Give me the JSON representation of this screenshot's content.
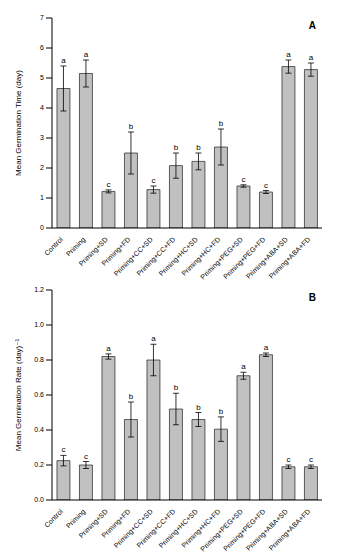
{
  "chart_data": [
    {
      "type": "bar",
      "title": "A",
      "y_label": "Mean Germination Time (day)",
      "categories": [
        "Control",
        "Priming",
        "Priming+SD",
        "Priming+FD",
        "Priming+CC+SD",
        "Priming+CC+FD",
        "Priming+HC+SD",
        "Priming+HC+FD",
        "Priming+PEG+SD",
        "Priming+PEG+FD",
        "Priming+ABA+SD",
        "Priming+ABA+FD"
      ],
      "values": [
        4.65,
        5.15,
        1.22,
        2.5,
        1.28,
        2.08,
        2.22,
        2.7,
        1.4,
        1.2,
        5.38,
        5.28
      ],
      "errors": [
        0.75,
        0.45,
        0.05,
        0.7,
        0.12,
        0.42,
        0.28,
        0.6,
        0.04,
        0.05,
        0.22,
        0.22
      ],
      "letters": [
        "a",
        "a",
        "c",
        "b",
        "c",
        "b",
        "b",
        "b",
        "c",
        "c",
        "a",
        "a"
      ],
      "color": "#c0c0c0",
      "ylim": [
        0,
        7
      ],
      "yticks": [
        0,
        1,
        2,
        3,
        4,
        5,
        6,
        7
      ],
      "grid": false
    },
    {
      "type": "bar",
      "title": "B",
      "y_label": "Mean Germination Rate (day)⁻¹",
      "categories": [
        "Control",
        "Priming",
        "Priming+SD",
        "Priming+FD",
        "Priming+CC+SD",
        "Priming+CC+FD",
        "Priming+HC+SD",
        "Priming+HC+FD",
        "Priming+PEG+SD",
        "Priming+PEG+FD",
        "Priming+ABA+SD",
        "Priming+ABA+FD"
      ],
      "values": [
        0.225,
        0.2,
        0.82,
        0.46,
        0.8,
        0.52,
        0.46,
        0.405,
        0.71,
        0.83,
        0.19,
        0.19
      ],
      "errors": [
        0.03,
        0.02,
        0.015,
        0.1,
        0.09,
        0.09,
        0.04,
        0.07,
        0.02,
        0.01,
        0.01,
        0.01
      ],
      "letters": [
        "c",
        "c",
        "a",
        "b",
        "a",
        "b",
        "b",
        "b",
        "a",
        "a",
        "c",
        "c"
      ],
      "color": "#c0c0c0",
      "ylim": [
        0,
        1.2
      ],
      "yticks": [
        {
          "value": 0,
          "label": "0.0"
        },
        0.2,
        0.4,
        0.6,
        0.8,
        {
          "value": 1,
          "label": "1.0"
        },
        1.2
      ],
      "grid": false
    }
  ]
}
